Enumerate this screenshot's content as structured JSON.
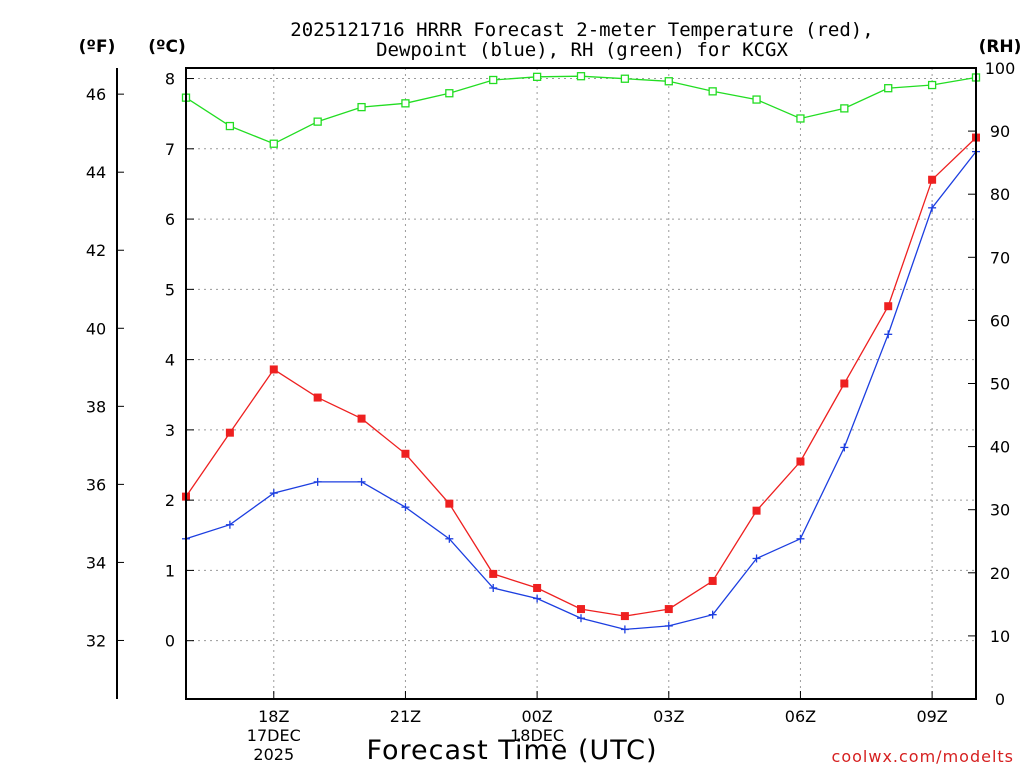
{
  "chart_data": {
    "type": "line",
    "title_line1": "2025121716 HRRR Forecast 2-meter Temperature (red),",
    "title_line2": "Dewpoint (blue), RH (green) for KCGX",
    "xlabel": "Forecast Time (UTC)",
    "credit": "coolwx.com/modelts",
    "axis_units": {
      "fahrenheit": "(ºF)",
      "celsius": "(ºC)",
      "rh": "(RH)"
    },
    "x_hours": [
      16,
      17,
      18,
      19,
      20,
      21,
      22,
      23,
      24,
      25,
      26,
      27,
      28,
      29,
      30,
      31,
      32,
      33,
      34
    ],
    "xlim": [
      16,
      34
    ],
    "x_ticks": [
      {
        "hour": 18,
        "lines": [
          "18Z",
          "17DEC",
          "2025"
        ]
      },
      {
        "hour": 21,
        "lines": [
          "21Z"
        ]
      },
      {
        "hour": 24,
        "lines": [
          "00Z",
          "18DEC"
        ]
      },
      {
        "hour": 27,
        "lines": [
          "03Z"
        ]
      },
      {
        "hour": 30,
        "lines": [
          "06Z"
        ]
      },
      {
        "hour": 33,
        "lines": [
          "09Z"
        ]
      }
    ],
    "celsius_axis": {
      "ylim": [
        -0.83,
        8.15
      ],
      "ticks": [
        0,
        1,
        2,
        3,
        4,
        5,
        6,
        7,
        8
      ]
    },
    "fahrenheit_axis": {
      "ylim": [
        30.5,
        46.67
      ],
      "ticks": [
        32,
        34,
        36,
        38,
        40,
        42,
        44,
        46
      ]
    },
    "rh_axis": {
      "ylim": [
        0,
        100
      ],
      "ticks": [
        0,
        10,
        20,
        30,
        40,
        50,
        60,
        70,
        80,
        90,
        100
      ]
    },
    "series": [
      {
        "name": "Temperature",
        "axis": "celsius",
        "color": "#ee2020",
        "marker": "filled-square",
        "values": [
          2.05,
          2.96,
          3.86,
          3.46,
          3.16,
          2.66,
          1.95,
          0.95,
          0.75,
          0.45,
          0.35,
          0.45,
          0.85,
          1.85,
          2.55,
          3.66,
          4.76,
          6.56,
          7.16
        ]
      },
      {
        "name": "Dewpoint",
        "axis": "celsius",
        "color": "#1c3ee0",
        "marker": "plus",
        "values": [
          1.45,
          1.65,
          2.1,
          2.26,
          2.26,
          1.9,
          1.45,
          0.75,
          0.6,
          0.32,
          0.16,
          0.21,
          0.37,
          1.17,
          1.45,
          2.75,
          4.36,
          6.16,
          6.96
        ]
      },
      {
        "name": "RH",
        "axis": "rh",
        "color": "#22dd22",
        "marker": "open-square",
        "values": [
          95.3,
          90.8,
          88.0,
          91.5,
          93.8,
          94.4,
          96.0,
          98.1,
          98.6,
          98.7,
          98.3,
          97.9,
          96.3,
          95.0,
          92.0,
          93.6,
          96.8,
          97.3,
          98.5
        ]
      }
    ]
  }
}
